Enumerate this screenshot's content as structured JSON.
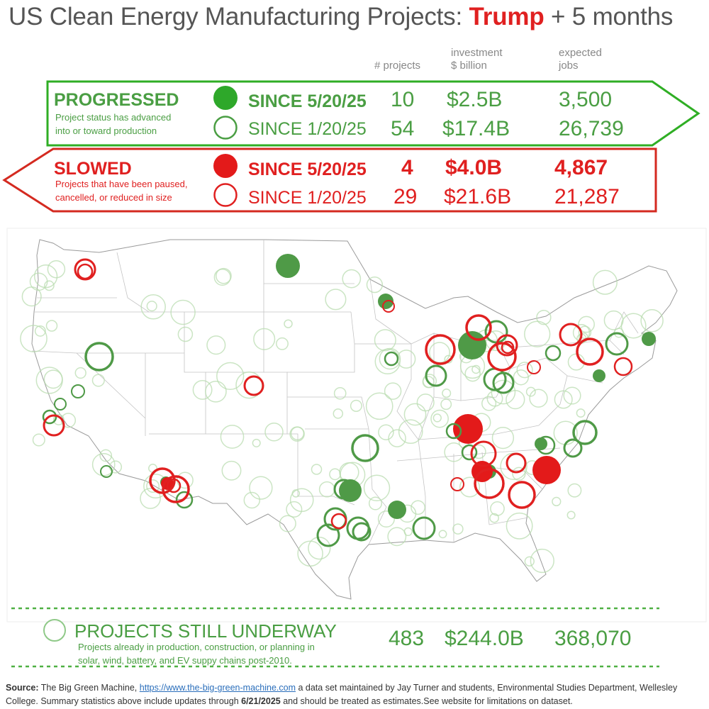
{
  "title": {
    "prefix": "US Clean Energy Manufacturing Projects: ",
    "highlight": "Trump",
    "suffix": " + 5 months"
  },
  "columns": {
    "projects": "# projects",
    "investment_l1": "investment",
    "investment_l2": "$ billion",
    "jobs_l1": "expected",
    "jobs_l2": "jobs"
  },
  "progressed": {
    "heading": "PROGRESSED",
    "desc1": "Project status has advanced",
    "desc2": "into or toward production",
    "rows": [
      {
        "label": "SINCE 5/20/25",
        "projects": "10",
        "investment": "$2.5B",
        "jobs": "3,500"
      },
      {
        "label": "SINCE 1/20/25",
        "projects": "54",
        "investment": "$17.4B",
        "jobs": "26,739"
      }
    ]
  },
  "slowed": {
    "heading": "SLOWED",
    "desc1": "Projects that have been paused,",
    "desc2": "cancelled, or reduced in size",
    "rows": [
      {
        "label": "SINCE 5/20/25",
        "projects": "4",
        "investment": "$4.0B",
        "jobs": "4,867"
      },
      {
        "label": "SINCE 1/20/25",
        "projects": "29",
        "investment": "$21.6B",
        "jobs": "21,287"
      }
    ]
  },
  "underway": {
    "heading": "PROJECTS STILL UNDERWAY",
    "desc1": "Projects already in production, construction, or planning in",
    "desc2": "solar, wind, battery, and EV suppy chains post-2010.",
    "projects": "483",
    "investment": "$244.0B",
    "jobs": "368,070"
  },
  "source": {
    "label": "Source:",
    "text1": " The Big Green Machine, ",
    "link": "https://www.the-big-green-machine.com",
    "text2": " a data set maintained by Jay Turner and students, Environmental Studies Department, Wellesley College. Summary statistics above include updates through ",
    "date": "6/21/2025",
    "text3": " and should be treated as estimates.See website for limitations on dataset."
  },
  "colors": {
    "green": "#4a9e43",
    "green_border": "#2fae24",
    "red": "#e02020",
    "red_border": "#d42a20",
    "faint_green": "#b9dcb0"
  }
}
